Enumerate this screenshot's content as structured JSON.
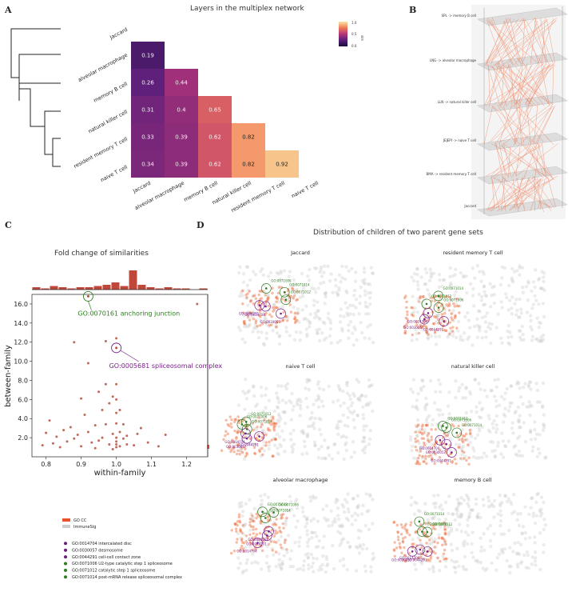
{
  "panel_labels": {
    "a": "A",
    "b": "B",
    "c": "C",
    "d": "D"
  },
  "panel_a": {
    "title": "Layers in the multiplex network",
    "row_labels": [
      "Jaccard",
      "alveolar macrophage",
      "memory B cell",
      "natural killer cell",
      "resident memory T cell",
      "naive T cell"
    ],
    "col_labels": [
      "Jaccard",
      "alveolar macrophage",
      "memory B cell",
      "natural killer cell",
      "resident memory T cell",
      "naive T cell"
    ],
    "colorbar": {
      "label": "sim",
      "max_tick": "1.0",
      "mid_tick": "0.5",
      "min_tick": "0.0"
    }
  },
  "chart_data": [
    {
      "type": "heatmap",
      "title": "Layers in the multiplex network",
      "rows": [
        "alveolar macrophage",
        "memory B cell",
        "natural killer cell",
        "resident memory T cell",
        "naive T cell"
      ],
      "cols": [
        "Jaccard",
        "alveolar macrophage",
        "memory B cell",
        "natural killer cell",
        "resident memory T cell"
      ],
      "values": [
        [
          0.19,
          null,
          null,
          null,
          null
        ],
        [
          0.26,
          0.44,
          null,
          null,
          null
        ],
        [
          0.31,
          0.4,
          0.65,
          null,
          null
        ],
        [
          0.33,
          0.39,
          0.62,
          0.82,
          null
        ],
        [
          0.34,
          0.39,
          0.62,
          0.82,
          0.92
        ]
      ],
      "labels": [
        [
          "0.19"
        ],
        [
          "0.26",
          "0.44"
        ],
        [
          "0.31",
          "0.4",
          "0.65"
        ],
        [
          "0.33",
          "0.39",
          "0.62",
          "0.82"
        ],
        [
          "0.34",
          "0.39",
          "0.62",
          "0.82",
          "0.92"
        ]
      ],
      "colorbar_range": [
        0,
        1
      ]
    },
    {
      "type": "scatter",
      "title": "Fold change of similarities",
      "xlabel": "within-family",
      "ylabel": "between-family",
      "xlim": [
        0.76,
        1.26
      ],
      "ylim": [
        0,
        17
      ],
      "xticks": [
        "0.8",
        "0.9",
        "1.0",
        "1.1",
        "1.2"
      ],
      "yticks": [
        "2.0",
        "4.0",
        "6.0",
        "8.0",
        "10.0",
        "12.0",
        "14.0",
        "16.0"
      ],
      "points": [
        [
          0.79,
          1.2
        ],
        [
          0.8,
          2.5
        ],
        [
          0.81,
          3.8
        ],
        [
          0.82,
          1.4
        ],
        [
          0.83,
          2.1
        ],
        [
          0.84,
          1.0
        ],
        [
          0.85,
          2.8
        ],
        [
          0.86,
          1.6
        ],
        [
          0.87,
          3.1
        ],
        [
          0.88,
          1.9
        ],
        [
          0.88,
          12.0
        ],
        [
          0.89,
          2.3
        ],
        [
          0.9,
          6.1
        ],
        [
          0.9,
          1.1
        ],
        [
          0.91,
          4.4
        ],
        [
          0.92,
          9.8
        ],
        [
          0.92,
          2.6
        ],
        [
          0.93,
          1.5
        ],
        [
          0.94,
          3.3
        ],
        [
          0.94,
          0.9
        ],
        [
          0.95,
          6.8
        ],
        [
          0.95,
          1.7
        ],
        [
          0.96,
          4.9
        ],
        [
          0.96,
          2.0
        ],
        [
          0.97,
          12.1
        ],
        [
          0.97,
          7.6
        ],
        [
          0.97,
          3.4
        ],
        [
          0.98,
          5.6
        ],
        [
          0.98,
          1.3
        ],
        [
          0.99,
          6.3
        ],
        [
          0.99,
          2.4
        ],
        [
          0.99,
          0.8
        ],
        [
          1.0,
          1.0
        ],
        [
          1.0,
          1.3
        ],
        [
          1.0,
          1.6
        ],
        [
          1.0,
          2.0
        ],
        [
          1.0,
          3.5
        ],
        [
          1.0,
          4.6
        ],
        [
          1.0,
          6.0
        ],
        [
          1.0,
          7.6
        ],
        [
          1.0,
          12.4
        ],
        [
          1.01,
          1.1
        ],
        [
          1.01,
          2.6
        ],
        [
          1.01,
          4.9
        ],
        [
          1.02,
          1.9
        ],
        [
          1.02,
          3.4
        ],
        [
          1.03,
          1.3
        ],
        [
          1.03,
          2.2
        ],
        [
          1.05,
          1.2
        ],
        [
          1.06,
          2.4
        ],
        [
          1.07,
          3.0
        ],
        [
          1.09,
          1.5
        ],
        [
          1.12,
          1.1
        ],
        [
          1.14,
          2.3
        ],
        [
          1.23,
          16.0
        ]
      ],
      "highlighted": [
        {
          "x": 0.92,
          "y": 16.8,
          "label": "GO:0070161 anchoring junction",
          "color": "#2e7d1f"
        },
        {
          "x": 1.0,
          "y": 11.4,
          "label": "GO:0005681 spliceosomal complex",
          "color": "#7a1f8a"
        }
      ]
    }
  ],
  "panel_b": {
    "layers": [
      "SPL -> memory B cell",
      "LNG -> alveolar macrophage",
      "LLN -> natural killer cell",
      "JEJEPI -> naive T cell",
      "BMA -> resident memory T cell",
      "Jaccard"
    ]
  },
  "panel_c": {
    "title": "Fold change of similarities",
    "xlabel": "within-family",
    "ylabel": "between-family",
    "annotation_green": "GO:0070161 anchoring junction",
    "annotation_purple": "GO:0005681 spliceosomal complex"
  },
  "panel_d": {
    "title": "Distribution of children of two parent gene sets",
    "subplots": [
      "Jaccard",
      "resident memory T cell",
      "naive T cell",
      "natural killer cell",
      "alveolar macrophage",
      "memory B cell"
    ],
    "point_labels": {
      "green": [
        "GO:0071006",
        "GO:0071012",
        "GO:0071014"
      ],
      "purple": [
        "GO:0030057",
        "GO:0044291",
        "GO:0014704"
      ]
    }
  },
  "legend": {
    "series": [
      {
        "label": "GO CC",
        "color": "#e8522a"
      },
      {
        "label": "ImmuneSig",
        "color": "#cccccc"
      }
    ],
    "items": [
      {
        "label": "GO:0014704 intercalated disc",
        "color": "#6b1f7a"
      },
      {
        "label": "GO:0030057 desmosome",
        "color": "#6b1f7a"
      },
      {
        "label": "GO:0044291 cell-cell contact zone",
        "color": "#6b1f7a"
      },
      {
        "label": "GO:0071006 U2-type catalytic step 1 spliceosome",
        "color": "#2e7d1f"
      },
      {
        "label": "GO:0071012 catalytic step 1 spliceosome",
        "color": "#2e7d1f"
      },
      {
        "label": "GO:0071014 post-mRNA release spliceosomal complex",
        "color": "#2e7d1f"
      }
    ]
  }
}
